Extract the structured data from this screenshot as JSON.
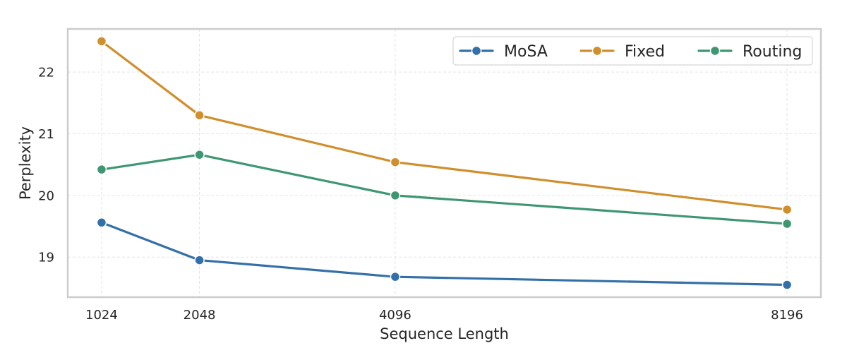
{
  "chart_data": {
    "type": "line",
    "title": "",
    "xlabel": "Sequence Length",
    "ylabel": "Perplexity",
    "x": [
      1024,
      2048,
      4096,
      8196
    ],
    "x_tick_labels": [
      "1024",
      "2048",
      "4096",
      "8196"
    ],
    "xlim": [
      670,
      8550
    ],
    "ylim": [
      18.35,
      22.7
    ],
    "y_ticks": [
      19,
      20,
      21,
      22
    ],
    "y_tick_labels": [
      "19",
      "20",
      "21",
      "22"
    ],
    "grid": true,
    "legend_position": "top-right",
    "series": [
      {
        "name": "MoSA",
        "color": "#3470a8",
        "values": [
          19.56,
          18.95,
          18.68,
          18.55
        ]
      },
      {
        "name": "Fixed",
        "color": "#d08e2c",
        "values": [
          22.5,
          21.3,
          20.54,
          19.77
        ]
      },
      {
        "name": "Routing",
        "color": "#3e9772",
        "values": [
          20.42,
          20.66,
          20.0,
          19.54
        ]
      }
    ]
  }
}
